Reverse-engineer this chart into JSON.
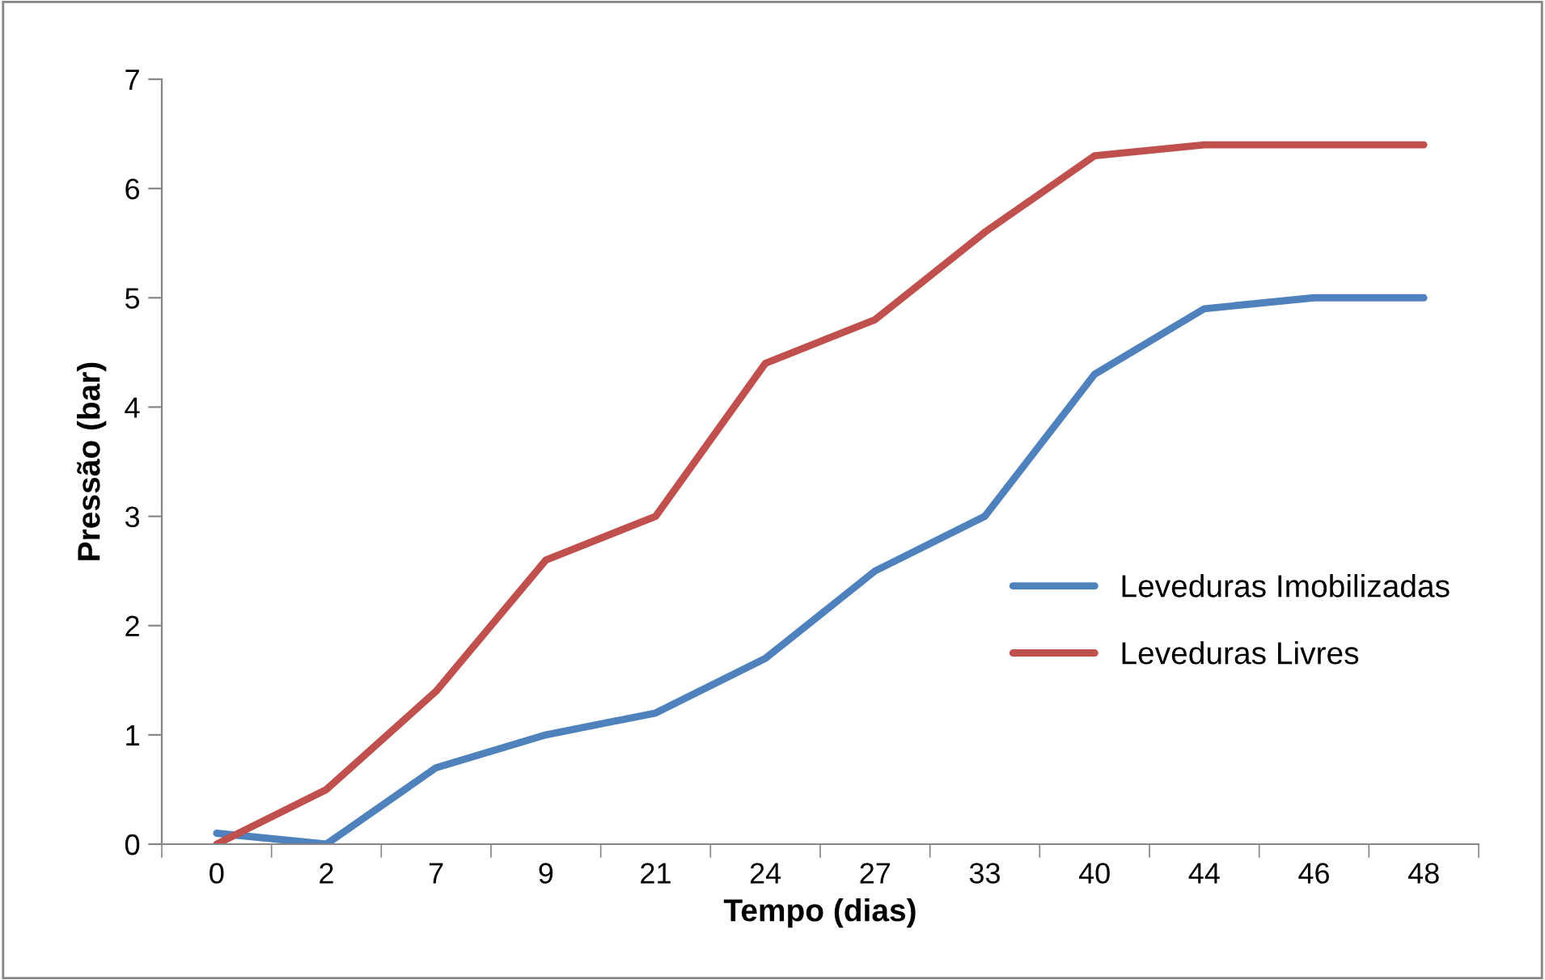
{
  "chart_data": {
    "type": "line",
    "xlabel": "Tempo (dias)",
    "ylabel": "Pressão (bar)",
    "categories": [
      "0",
      "2",
      "7",
      "9",
      "21",
      "24",
      "27",
      "33",
      "40",
      "44",
      "46",
      "48"
    ],
    "series": [
      {
        "name": "Leveduras Imobilizadas",
        "color": "#4f81bd",
        "values": [
          0.1,
          0,
          0.7,
          1.0,
          1.2,
          1.7,
          2.5,
          3.0,
          4.3,
          4.9,
          5.0,
          5.0
        ]
      },
      {
        "name": "Leveduras Livres",
        "color": "#c0504d",
        "values": [
          0,
          0.5,
          1.4,
          2.6,
          3.0,
          4.4,
          4.8,
          5.6,
          6.3,
          6.4,
          6.4,
          6.4
        ]
      }
    ],
    "ylim": [
      0,
      7
    ],
    "yticks": [
      0,
      1,
      2,
      3,
      4,
      5,
      6,
      7
    ],
    "grid": false,
    "legend": "right",
    "marker": "none",
    "line_style": "solid"
  }
}
